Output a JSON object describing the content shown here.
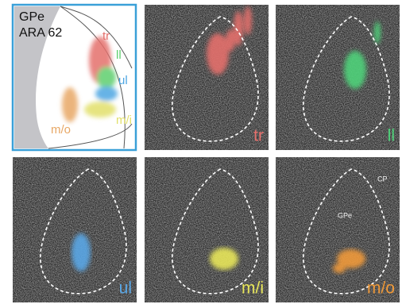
{
  "atlas": {
    "title": [
      "GPe",
      "ARA 62"
    ],
    "regions": [
      {
        "label": "tr",
        "color": "#e4706c"
      },
      {
        "label": "ll",
        "color": "#5fcf6e"
      },
      {
        "label": "ul",
        "color": "#4ea6e2"
      },
      {
        "label": "m/i",
        "color": "#e2e06a"
      },
      {
        "label": "m/o",
        "color": "#e8a866"
      }
    ]
  },
  "panels": [
    {
      "label": "tr",
      "color": "#e4706c"
    },
    {
      "label": "ll",
      "color": "#4fd27a"
    },
    {
      "label": "ul",
      "color": "#5aa7e6"
    },
    {
      "label": "m/i",
      "color": "#e8e65a"
    },
    {
      "label": "m/o",
      "color": "#f09a3a"
    }
  ],
  "annotations": {
    "cp": "CP",
    "gpe": "GPe"
  }
}
